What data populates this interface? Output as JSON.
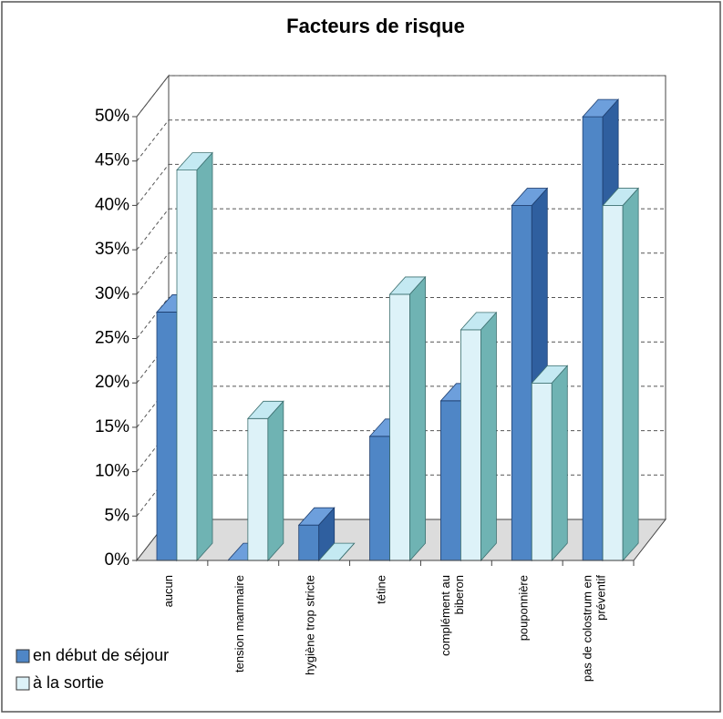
{
  "chart_data": {
    "type": "bar3d",
    "title": "Facteurs de risque",
    "categories": [
      "aucun",
      "tension mammaire",
      "hygiène trop stricte",
      "tétine",
      "complément au\nbiberon",
      "pouponnière",
      "pas de colostrum en\npréventif"
    ],
    "series": [
      {
        "name": "en début de séjour",
        "color": "#4f86c6",
        "values": [
          28,
          0,
          4,
          14,
          18,
          40,
          50
        ]
      },
      {
        "name": "à la sortie",
        "color": "#ddf2f8",
        "values": [
          44,
          16,
          0,
          30,
          26,
          20,
          40
        ]
      }
    ],
    "ylim": [
      0,
      50
    ],
    "yticks": [
      {
        "value": 0,
        "label": "0%"
      },
      {
        "value": 5,
        "label": "5%"
      },
      {
        "value": 10,
        "label": "10%"
      },
      {
        "value": 15,
        "label": "15%"
      },
      {
        "value": 20,
        "label": "20%"
      },
      {
        "value": 25,
        "label": "25%"
      },
      {
        "value": 30,
        "label": "30%"
      },
      {
        "value": 35,
        "label": "35%"
      },
      {
        "value": 40,
        "label": "40%"
      },
      {
        "value": 45,
        "label": "45%"
      },
      {
        "value": 50,
        "label": "50%"
      }
    ],
    "grid": true,
    "legend": "bottom-left"
  }
}
